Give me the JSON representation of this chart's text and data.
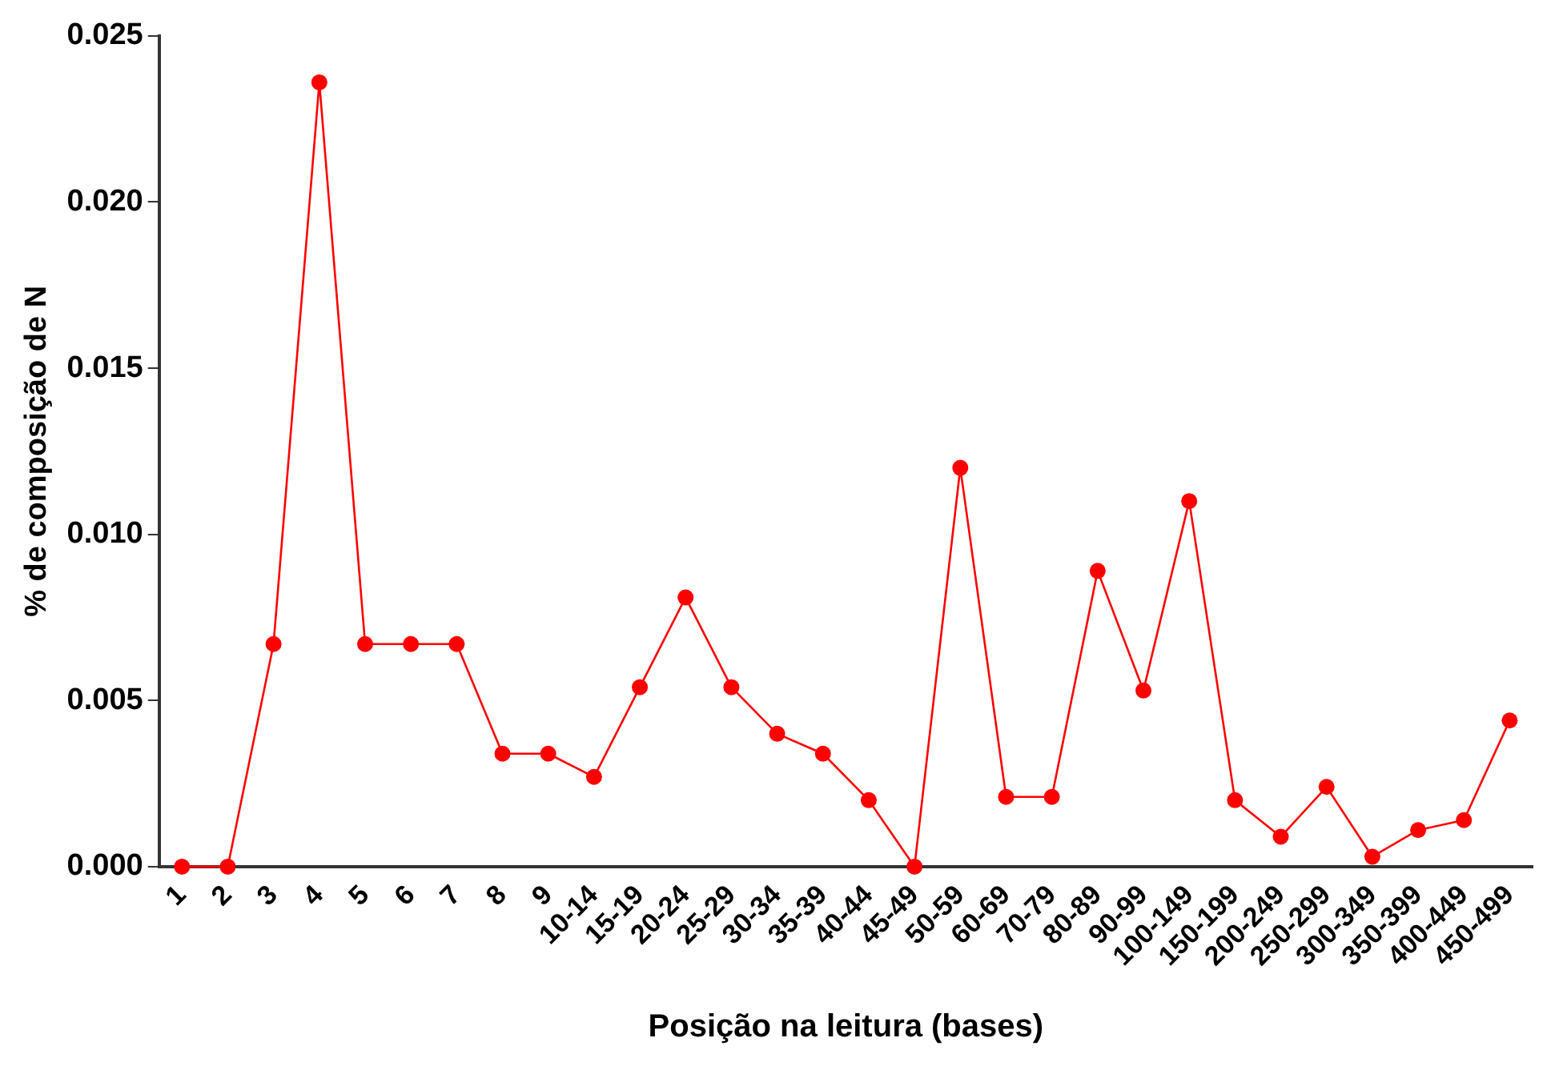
{
  "chart_data": {
    "type": "line",
    "xlabel": "Posição na leitura (bases)",
    "ylabel": "% de composição de N",
    "categories": [
      "1",
      "2",
      "3",
      "4",
      "5",
      "6",
      "7",
      "8",
      "9",
      "10-14",
      "15-19",
      "20-24",
      "25-29",
      "30-34",
      "35-39",
      "40-44",
      "45-49",
      "50-59",
      "60-69",
      "70-79",
      "80-89",
      "90-99",
      "100-149",
      "150-199",
      "200-249",
      "250-299",
      "300-349",
      "350-399",
      "400-449",
      "450-499"
    ],
    "series": [
      {
        "color": "#ff0000",
        "values": [
          0,
          0,
          0.0067,
          0.0236,
          0.0067,
          0.0067,
          0.0067,
          0.0034,
          0.0034,
          0.0027,
          0.0054,
          0.0081,
          0.0054,
          0.004,
          0.0034,
          0.002,
          0,
          0.012,
          0.0021,
          0.0021,
          0.0089,
          0.0053,
          0.011,
          0.002,
          0.0009,
          0.0024,
          0.0003,
          0.0011,
          0.0014,
          0.0044
        ]
      }
    ],
    "ylim": [
      0,
      0.025
    ],
    "yticks": [
      {
        "value": 0,
        "label": "0.000"
      },
      {
        "value": 0.005,
        "label": "0.005"
      },
      {
        "value": 0.01,
        "label": "0.010"
      },
      {
        "value": 0.015,
        "label": "0.015"
      },
      {
        "value": 0.02,
        "label": "0.020"
      },
      {
        "value": 0.025,
        "label": "0.025"
      }
    ],
    "grid": false,
    "legend": false,
    "marker": "circle",
    "line_style": "solid"
  }
}
